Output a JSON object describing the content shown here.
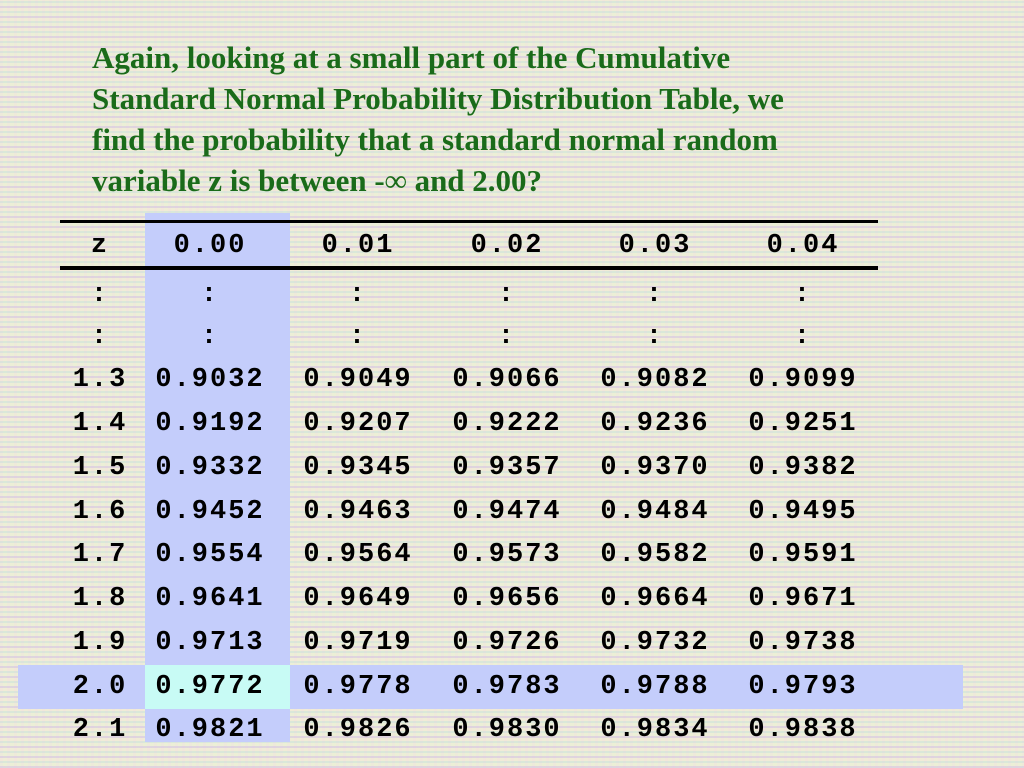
{
  "title": {
    "lines": [
      "Again, looking at a small part of the Cumulative",
      "Standard Normal Probability Distribution Table, we",
      "find the probability that a standard normal random",
      "variable z is between -∞ and 2.00?"
    ]
  },
  "table": {
    "header": [
      "z",
      "0.00",
      "0.01",
      "0.02",
      "0.03",
      "0.04"
    ],
    "rows": [
      [
        ":",
        ":",
        ":",
        ":",
        ":",
        ":"
      ],
      [
        ":",
        ":",
        ":",
        ":",
        ":",
        ":"
      ],
      [
        "1.3",
        "0.9032",
        "0.9049",
        "0.9066",
        "0.9082",
        "0.9099"
      ],
      [
        "1.4",
        "0.9192",
        "0.9207",
        "0.9222",
        "0.9236",
        "0.9251"
      ],
      [
        "1.5",
        "0.9332",
        "0.9345",
        "0.9357",
        "0.9370",
        "0.9382"
      ],
      [
        "1.6",
        "0.9452",
        "0.9463",
        "0.9474",
        "0.9484",
        "0.9495"
      ],
      [
        "1.7",
        "0.9554",
        "0.9564",
        "0.9573",
        "0.9582",
        "0.9591"
      ],
      [
        "1.8",
        "0.9641",
        "0.9649",
        "0.9656",
        "0.9664",
        "0.9671"
      ],
      [
        "1.9",
        "0.9713",
        "0.9719",
        "0.9726",
        "0.9732",
        "0.9738"
      ],
      [
        "2.0",
        "0.9772",
        "0.9778",
        "0.9783",
        "0.9788",
        "0.9793"
      ],
      [
        "2.1",
        "0.9821",
        "0.9826",
        "0.9830",
        "0.9834",
        "0.9838"
      ]
    ]
  }
}
